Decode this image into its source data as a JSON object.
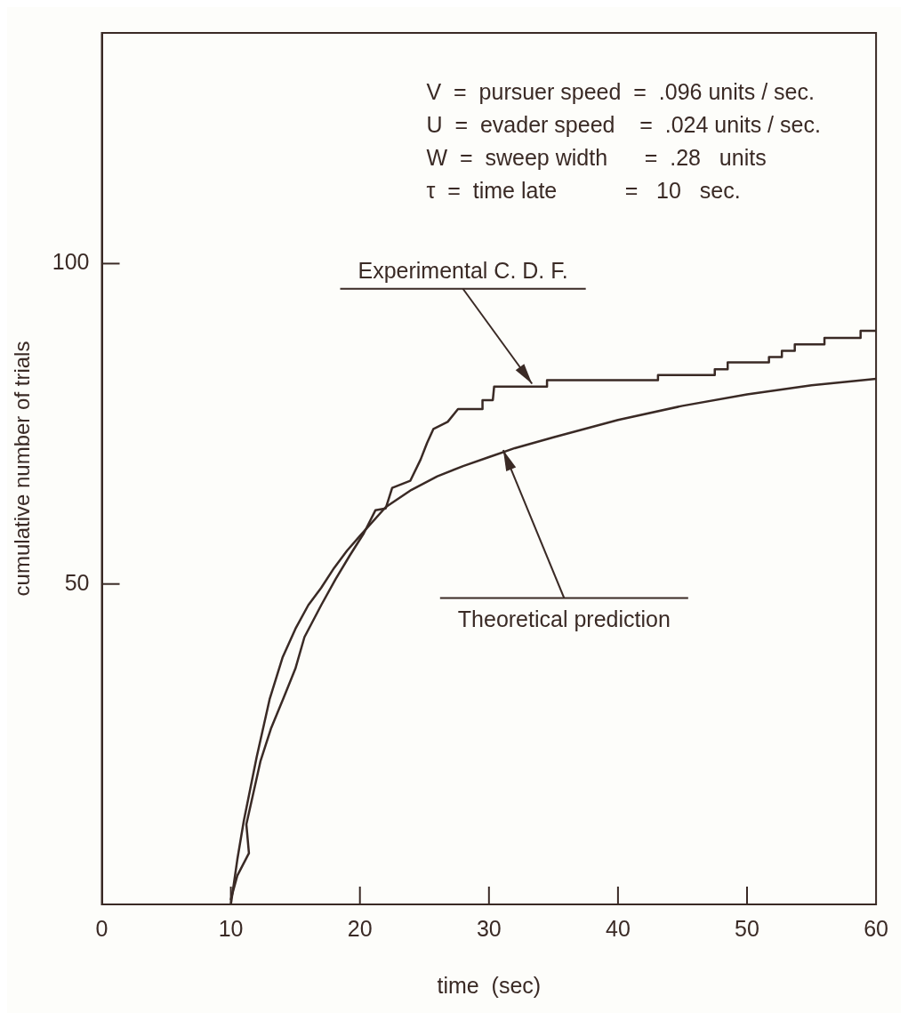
{
  "chart_data": {
    "type": "line",
    "xlabel": "time  (sec)",
    "ylabel": "cumulative number of trials",
    "xlim": [
      0,
      60
    ],
    "ylim": [
      0,
      136
    ],
    "xticks": [
      0,
      10,
      20,
      30,
      40,
      50,
      60
    ],
    "yticks": [
      50,
      100
    ],
    "grid": false,
    "legend": false,
    "marker": "none",
    "line_style": "solid",
    "series": [
      {
        "color": "#3a2a25",
        "x": [
          10,
          10.5,
          11.4,
          11.2,
          11.7,
          12.3,
          13.1,
          14.1,
          15,
          15.7,
          17,
          18.1,
          19.2,
          20.3,
          21.2,
          22,
          22.5,
          23.9,
          24.7,
          25.2,
          25.7,
          26.8,
          27.6,
          29.5,
          29.5,
          30.3,
          30.4,
          34.5,
          34.5,
          43.1,
          43.1,
          47.5,
          47.5,
          48.5,
          48.5,
          51.7,
          51.7,
          52.7,
          52.7,
          53.7,
          53.7,
          56,
          56,
          58.8,
          58.8,
          60
        ],
        "values": [
          0.8,
          4.5,
          8,
          12.5,
          17,
          22.4,
          27.4,
          32.3,
          36.8,
          41.7,
          46.7,
          50.7,
          54.4,
          57.9,
          61.5,
          61.8,
          65,
          66.1,
          69.4,
          72,
          74.2,
          75.3,
          77.3,
          77.3,
          78.7,
          78.7,
          80.8,
          80.8,
          81.8,
          81.8,
          82.6,
          82.6,
          83.5,
          83.5,
          84.6,
          84.6,
          85.4,
          85.4,
          86.4,
          86.4,
          87.4,
          87.4,
          88.4,
          88.4,
          89.5,
          89.5
        ]
      },
      {
        "color": "#3a2a25",
        "x": [
          10,
          10.5,
          11,
          11.5,
          12,
          13,
          14,
          15,
          16,
          17,
          18,
          19,
          20,
          22,
          24,
          26,
          28,
          30,
          32,
          35,
          40,
          45,
          50,
          55,
          60
        ],
        "values": [
          0,
          7,
          13,
          18,
          23,
          32,
          38.5,
          43,
          46.7,
          49.4,
          52.5,
          55.2,
          57.5,
          62,
          64.7,
          66.8,
          68.4,
          69.8,
          71.2,
          72.9,
          75.6,
          77.8,
          79.6,
          81,
          82
        ]
      }
    ],
    "annotations": [
      "V  =  pursuer speed  =  .096 units / sec.",
      "U  =  evader speed    =  .024 units / sec.",
      "W  =  sweep width      =  .28   units",
      "τ  =  time late           =   10   sec.",
      {
        "text": "Experimental C. D. F.",
        "x": 33.5,
        "y": 80.8
      },
      {
        "text": "Theoretical prediction",
        "x": 31,
        "y": 71.4
      }
    ]
  }
}
